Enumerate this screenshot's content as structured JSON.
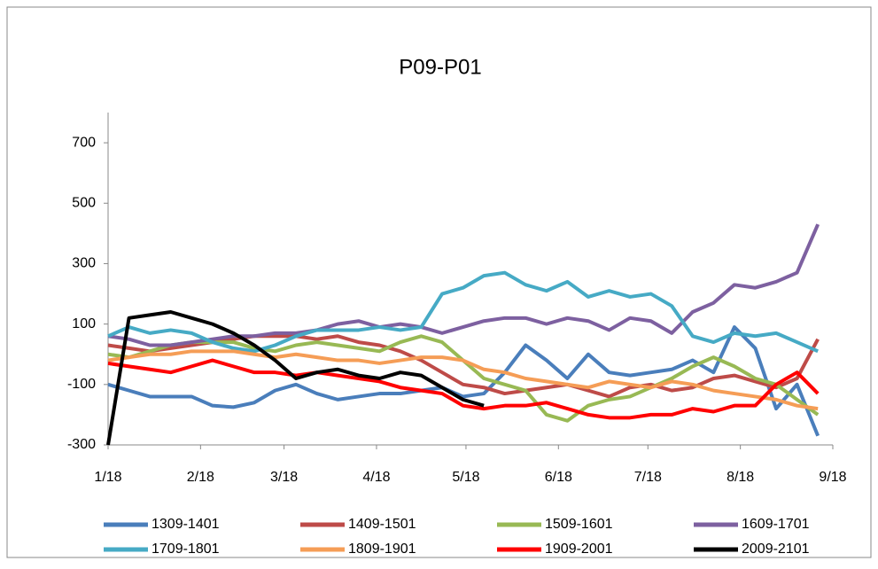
{
  "chart_data": {
    "type": "line",
    "title": "P09-P01",
    "x": [
      0,
      7,
      14,
      21,
      28,
      35,
      42,
      49,
      56,
      63,
      70,
      77,
      84,
      91,
      98,
      105,
      112,
      119,
      126,
      133,
      140,
      147,
      154,
      161,
      168,
      175,
      182,
      189,
      196,
      203,
      210,
      217,
      224,
      231,
      238
    ],
    "xlim": [
      0,
      243
    ],
    "xticks": [
      {
        "value": 0,
        "label": "1/18"
      },
      {
        "value": 31,
        "label": "2/18"
      },
      {
        "value": 59,
        "label": "3/18"
      },
      {
        "value": 90,
        "label": "4/18"
      },
      {
        "value": 120,
        "label": "5/18"
      },
      {
        "value": 151,
        "label": "6/18"
      },
      {
        "value": 181,
        "label": "7/18"
      },
      {
        "value": 212,
        "label": "8/18"
      },
      {
        "value": 243,
        "label": "9/18"
      }
    ],
    "ylim": [
      -300,
      800
    ],
    "yticks": [
      -300,
      -100,
      100,
      300,
      500,
      700
    ],
    "series": [
      {
        "name": "1309-1401",
        "color": "#4a7ebb",
        "values": [
          -100,
          -120,
          -140,
          -140,
          -140,
          -170,
          -175,
          -160,
          -120,
          -100,
          -130,
          -150,
          -140,
          -130,
          -130,
          -120,
          -110,
          -140,
          -130,
          -60,
          30,
          -20,
          -80,
          0,
          -60,
          -70,
          -60,
          -50,
          -20,
          -60,
          90,
          20,
          -180,
          -100,
          -270
        ]
      },
      {
        "name": "1409-1501",
        "color": "#be4b48",
        "values": [
          30,
          20,
          10,
          20,
          30,
          40,
          50,
          60,
          60,
          60,
          50,
          60,
          40,
          30,
          10,
          -20,
          -60,
          -100,
          -110,
          -130,
          -120,
          -110,
          -100,
          -120,
          -140,
          -110,
          -100,
          -120,
          -110,
          -80,
          -70,
          -90,
          -110,
          -80,
          50
        ]
      },
      {
        "name": "1509-1601",
        "color": "#98b954",
        "values": [
          0,
          -10,
          10,
          30,
          40,
          40,
          40,
          20,
          10,
          30,
          40,
          30,
          20,
          10,
          40,
          60,
          40,
          -20,
          -80,
          -100,
          -120,
          -200,
          -220,
          -170,
          -150,
          -140,
          -110,
          -80,
          -40,
          -10,
          -40,
          -80,
          -100,
          -150,
          -200
        ]
      },
      {
        "name": "1609-1701",
        "color": "#7d60a0",
        "values": [
          60,
          50,
          30,
          30,
          40,
          50,
          60,
          60,
          70,
          70,
          80,
          100,
          110,
          90,
          100,
          90,
          70,
          90,
          110,
          120,
          120,
          100,
          120,
          110,
          80,
          120,
          110,
          70,
          140,
          170,
          230,
          220,
          240,
          270,
          430
        ]
      },
      {
        "name": "1709-1801",
        "color": "#46aac5",
        "values": [
          60,
          90,
          70,
          80,
          70,
          40,
          20,
          10,
          30,
          60,
          80,
          80,
          80,
          90,
          80,
          90,
          200,
          220,
          260,
          270,
          230,
          210,
          240,
          190,
          210,
          190,
          200,
          160,
          60,
          40,
          70,
          60,
          70,
          40,
          10
        ]
      },
      {
        "name": "1809-1901",
        "color": "#f59d56",
        "values": [
          -20,
          -10,
          0,
          0,
          10,
          10,
          10,
          0,
          -10,
          0,
          -10,
          -20,
          -20,
          -30,
          -20,
          -10,
          -10,
          -20,
          -50,
          -60,
          -80,
          -90,
          -100,
          -110,
          -90,
          -100,
          -110,
          -90,
          -100,
          -120,
          -130,
          -140,
          -150,
          -170,
          -180
        ]
      },
      {
        "name": "1909-2001",
        "color": "#ff0000",
        "values": [
          -30,
          -40,
          -50,
          -60,
          -40,
          -20,
          -40,
          -60,
          -60,
          -70,
          -60,
          -70,
          -80,
          -90,
          -110,
          -120,
          -130,
          -170,
          -180,
          -170,
          -170,
          -160,
          -180,
          -200,
          -210,
          -210,
          -200,
          -200,
          -180,
          -190,
          -170,
          -170,
          -100,
          -60,
          -130
        ]
      },
      {
        "name": "2009-2101",
        "color": "#000000",
        "values": [
          -300,
          120,
          130,
          140,
          120,
          100,
          70,
          30,
          -20,
          -80,
          -60,
          -50,
          -70,
          -80,
          -60,
          -70,
          -110,
          -150,
          -170,
          null,
          null,
          null,
          null,
          null,
          null,
          null,
          null,
          null,
          null,
          null,
          null,
          null,
          null,
          null,
          null
        ]
      }
    ]
  }
}
